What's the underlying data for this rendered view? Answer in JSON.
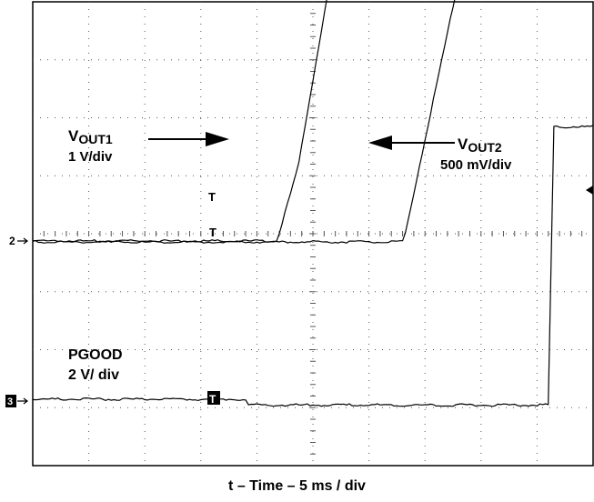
{
  "chart_data": {
    "type": "line",
    "xlabel": "t – Time – 5 ms / div",
    "x_unit": "ms",
    "xlim": [
      0,
      50
    ],
    "divisions": {
      "x": 10,
      "y": 8
    },
    "grid": true,
    "series": [
      {
        "name": "VOUT1",
        "scale": "1 V/div",
        "points": [
          [
            0,
            0
          ],
          [
            21.8,
            0
          ],
          [
            23.7,
            1.3
          ],
          [
            26.7,
            4.7
          ],
          [
            34.3,
            4.7
          ],
          [
            50,
            4.7
          ]
        ]
      },
      {
        "name": "VOUT2",
        "scale": "500 mV/div",
        "points": [
          [
            0,
            0
          ],
          [
            33.1,
            0
          ],
          [
            34.5,
            1.3
          ],
          [
            38.2,
            4.7
          ],
          [
            50,
            4.7
          ]
        ]
      },
      {
        "name": "PGOOD",
        "scale": "2 V/ div",
        "points": [
          [
            0,
            0
          ],
          [
            19.0,
            0
          ],
          [
            19.0,
            0.2
          ],
          [
            19.2,
            -0.1
          ],
          [
            46.0,
            -0.1
          ],
          [
            46.5,
            4.7
          ],
          [
            50,
            4.7
          ]
        ]
      }
    ],
    "annotations": {
      "vout1": {
        "name_main": "V",
        "name_sub": "OUT1",
        "scale": "1 V/div"
      },
      "vout2": {
        "name_main": "V",
        "name_sub": "OUT2",
        "scale": "500 mV/div"
      },
      "pgood": {
        "name": "PGOOD",
        "scale": "2 V/ div"
      },
      "channel_markers": [
        "2",
        "3"
      ],
      "trigger_marker": "T"
    }
  }
}
